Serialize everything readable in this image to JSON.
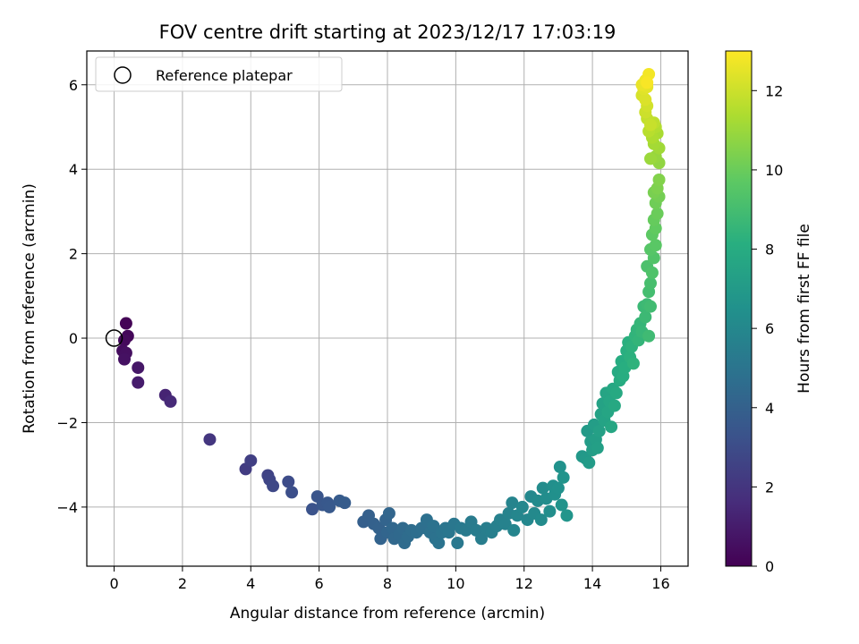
{
  "chart_data": {
    "type": "scatter",
    "title": "FOV centre drift starting at 2023/12/17 17:03:19",
    "xlabel": "Angular distance from reference (arcmin)",
    "ylabel": "Rotation from reference (arcmin)",
    "xlim": [
      -0.8,
      16.8
    ],
    "ylim": [
      -5.4,
      6.8
    ],
    "xticks": [
      "0",
      "2",
      "4",
      "6",
      "8",
      "10",
      "12",
      "14",
      "16"
    ],
    "yticks": [
      "−4",
      "−2",
      "0",
      "2",
      "4",
      "6"
    ],
    "grid": true,
    "legend": {
      "position": "top-left",
      "entries": [
        "Reference platepar"
      ]
    },
    "reference_point": {
      "x": 0,
      "y": 0
    },
    "colorbar": {
      "label": "Hours from first FF file",
      "colormap": "viridis",
      "range": [
        0,
        13
      ],
      "ticks": [
        "0",
        "2",
        "4",
        "6",
        "8",
        "10",
        "12"
      ]
    },
    "points": [
      {
        "x": 0.35,
        "y": 0.35,
        "h": 0.1
      },
      {
        "x": 0.4,
        "y": 0.05,
        "h": 0.2
      },
      {
        "x": 0.3,
        "y": -0.05,
        "h": 0.3
      },
      {
        "x": 0.25,
        "y": -0.3,
        "h": 0.4
      },
      {
        "x": 0.35,
        "y": -0.35,
        "h": 0.5
      },
      {
        "x": 0.3,
        "y": -0.5,
        "h": 0.6
      },
      {
        "x": 0.7,
        "y": -0.7,
        "h": 0.8
      },
      {
        "x": 0.7,
        "y": -1.05,
        "h": 1.0
      },
      {
        "x": 1.5,
        "y": -1.35,
        "h": 1.3
      },
      {
        "x": 1.65,
        "y": -1.5,
        "h": 1.5
      },
      {
        "x": 2.8,
        "y": -2.4,
        "h": 2.0
      },
      {
        "x": 3.85,
        "y": -3.1,
        "h": 2.3
      },
      {
        "x": 4.0,
        "y": -2.9,
        "h": 2.4
      },
      {
        "x": 4.5,
        "y": -3.25,
        "h": 2.6
      },
      {
        "x": 4.55,
        "y": -3.35,
        "h": 2.7
      },
      {
        "x": 4.65,
        "y": -3.5,
        "h": 2.8
      },
      {
        "x": 5.1,
        "y": -3.4,
        "h": 3.0
      },
      {
        "x": 5.2,
        "y": -3.65,
        "h": 3.1
      },
      {
        "x": 5.8,
        "y": -4.05,
        "h": 3.3
      },
      {
        "x": 5.95,
        "y": -3.75,
        "h": 3.4
      },
      {
        "x": 6.1,
        "y": -3.95,
        "h": 3.5
      },
      {
        "x": 6.25,
        "y": -3.9,
        "h": 3.55
      },
      {
        "x": 6.3,
        "y": -4.0,
        "h": 3.6
      },
      {
        "x": 6.6,
        "y": -3.85,
        "h": 3.7
      },
      {
        "x": 6.75,
        "y": -3.9,
        "h": 3.75
      },
      {
        "x": 7.3,
        "y": -4.35,
        "h": 3.9
      },
      {
        "x": 7.45,
        "y": -4.2,
        "h": 3.95
      },
      {
        "x": 7.6,
        "y": -4.4,
        "h": 4.0
      },
      {
        "x": 7.75,
        "y": -4.5,
        "h": 4.05
      },
      {
        "x": 7.8,
        "y": -4.75,
        "h": 4.1
      },
      {
        "x": 7.95,
        "y": -4.3,
        "h": 4.15
      },
      {
        "x": 8.0,
        "y": -4.6,
        "h": 4.2
      },
      {
        "x": 8.05,
        "y": -4.15,
        "h": 4.25
      },
      {
        "x": 8.15,
        "y": -4.5,
        "h": 4.3
      },
      {
        "x": 8.2,
        "y": -4.75,
        "h": 4.35
      },
      {
        "x": 8.35,
        "y": -4.65,
        "h": 4.4
      },
      {
        "x": 8.45,
        "y": -4.5,
        "h": 4.45
      },
      {
        "x": 8.5,
        "y": -4.85,
        "h": 4.5
      },
      {
        "x": 8.6,
        "y": -4.7,
        "h": 4.55
      },
      {
        "x": 8.7,
        "y": -4.55,
        "h": 4.6
      },
      {
        "x": 8.85,
        "y": -4.6,
        "h": 4.65
      },
      {
        "x": 9.0,
        "y": -4.5,
        "h": 4.7
      },
      {
        "x": 9.15,
        "y": -4.3,
        "h": 4.75
      },
      {
        "x": 9.25,
        "y": -4.6,
        "h": 4.8
      },
      {
        "x": 9.35,
        "y": -4.45,
        "h": 4.85
      },
      {
        "x": 9.4,
        "y": -4.75,
        "h": 4.9
      },
      {
        "x": 9.5,
        "y": -4.85,
        "h": 4.95
      },
      {
        "x": 9.6,
        "y": -4.6,
        "h": 5.0
      },
      {
        "x": 9.7,
        "y": -4.5,
        "h": 5.05
      },
      {
        "x": 9.8,
        "y": -4.6,
        "h": 5.1
      },
      {
        "x": 9.95,
        "y": -4.4,
        "h": 5.15
      },
      {
        "x": 10.05,
        "y": -4.85,
        "h": 5.2
      },
      {
        "x": 10.15,
        "y": -4.5,
        "h": 5.25
      },
      {
        "x": 10.3,
        "y": -4.55,
        "h": 5.3
      },
      {
        "x": 10.45,
        "y": -4.35,
        "h": 5.35
      },
      {
        "x": 10.6,
        "y": -4.55,
        "h": 5.4
      },
      {
        "x": 10.75,
        "y": -4.75,
        "h": 5.45
      },
      {
        "x": 10.9,
        "y": -4.5,
        "h": 5.5
      },
      {
        "x": 11.05,
        "y": -4.6,
        "h": 5.55
      },
      {
        "x": 11.2,
        "y": -4.45,
        "h": 5.6
      },
      {
        "x": 11.3,
        "y": -4.3,
        "h": 5.65
      },
      {
        "x": 11.45,
        "y": -4.4,
        "h": 5.7
      },
      {
        "x": 11.55,
        "y": -4.15,
        "h": 5.75
      },
      {
        "x": 11.65,
        "y": -3.9,
        "h": 5.8
      },
      {
        "x": 11.7,
        "y": -4.55,
        "h": 5.85
      },
      {
        "x": 11.8,
        "y": -4.2,
        "h": 5.9
      },
      {
        "x": 11.95,
        "y": -4.0,
        "h": 5.95
      },
      {
        "x": 12.1,
        "y": -4.3,
        "h": 6.0
      },
      {
        "x": 12.2,
        "y": -3.75,
        "h": 6.05
      },
      {
        "x": 12.3,
        "y": -4.15,
        "h": 6.1
      },
      {
        "x": 12.4,
        "y": -3.85,
        "h": 6.15
      },
      {
        "x": 12.5,
        "y": -4.3,
        "h": 6.2
      },
      {
        "x": 12.55,
        "y": -3.55,
        "h": 6.25
      },
      {
        "x": 12.65,
        "y": -3.8,
        "h": 6.3
      },
      {
        "x": 12.75,
        "y": -4.1,
        "h": 6.35
      },
      {
        "x": 12.85,
        "y": -3.5,
        "h": 6.4
      },
      {
        "x": 12.9,
        "y": -3.7,
        "h": 6.45
      },
      {
        "x": 13.0,
        "y": -3.55,
        "h": 6.5
      },
      {
        "x": 13.05,
        "y": -3.05,
        "h": 6.55
      },
      {
        "x": 13.1,
        "y": -3.95,
        "h": 6.6
      },
      {
        "x": 13.15,
        "y": -3.3,
        "h": 6.65
      },
      {
        "x": 13.25,
        "y": -4.2,
        "h": 6.7
      },
      {
        "x": 13.7,
        "y": -2.8,
        "h": 6.9
      },
      {
        "x": 13.8,
        "y": -2.85,
        "h": 6.95
      },
      {
        "x": 13.85,
        "y": -2.2,
        "h": 7.0
      },
      {
        "x": 13.9,
        "y": -2.95,
        "h": 7.05
      },
      {
        "x": 13.95,
        "y": -2.45,
        "h": 7.1
      },
      {
        "x": 14.0,
        "y": -2.65,
        "h": 7.15
      },
      {
        "x": 14.05,
        "y": -2.05,
        "h": 7.2
      },
      {
        "x": 14.1,
        "y": -2.4,
        "h": 7.25
      },
      {
        "x": 14.15,
        "y": -2.6,
        "h": 7.3
      },
      {
        "x": 14.2,
        "y": -2.2,
        "h": 7.35
      },
      {
        "x": 14.25,
        "y": -1.8,
        "h": 7.4
      },
      {
        "x": 14.3,
        "y": -1.55,
        "h": 7.45
      },
      {
        "x": 14.35,
        "y": -1.95,
        "h": 7.5
      },
      {
        "x": 14.4,
        "y": -1.3,
        "h": 7.55
      },
      {
        "x": 14.45,
        "y": -1.75,
        "h": 7.6
      },
      {
        "x": 14.5,
        "y": -1.5,
        "h": 7.65
      },
      {
        "x": 14.55,
        "y": -2.1,
        "h": 7.7
      },
      {
        "x": 14.6,
        "y": -1.2,
        "h": 7.75
      },
      {
        "x": 14.65,
        "y": -1.6,
        "h": 7.8
      },
      {
        "x": 14.7,
        "y": -1.3,
        "h": 7.85
      },
      {
        "x": 14.75,
        "y": -0.8,
        "h": 7.9
      },
      {
        "x": 14.8,
        "y": -1.0,
        "h": 7.95
      },
      {
        "x": 14.85,
        "y": -0.55,
        "h": 8.0
      },
      {
        "x": 14.9,
        "y": -0.9,
        "h": 8.05
      },
      {
        "x": 14.95,
        "y": -0.7,
        "h": 8.1
      },
      {
        "x": 15.0,
        "y": -0.3,
        "h": 8.15
      },
      {
        "x": 15.05,
        "y": -0.1,
        "h": 8.2
      },
      {
        "x": 15.1,
        "y": -0.45,
        "h": 8.25
      },
      {
        "x": 15.15,
        "y": -0.2,
        "h": 8.3
      },
      {
        "x": 15.2,
        "y": -0.6,
        "h": 8.35
      },
      {
        "x": 15.25,
        "y": 0.05,
        "h": 8.4
      },
      {
        "x": 15.3,
        "y": 0.2,
        "h": 8.45
      },
      {
        "x": 15.35,
        "y": -0.05,
        "h": 8.5
      },
      {
        "x": 15.4,
        "y": 0.35,
        "h": 8.55
      },
      {
        "x": 15.45,
        "y": 0.15,
        "h": 8.6
      },
      {
        "x": 15.5,
        "y": 0.75,
        "h": 8.7
      },
      {
        "x": 15.55,
        "y": 0.5,
        "h": 8.75
      },
      {
        "x": 15.6,
        "y": 0.8,
        "h": 8.8
      },
      {
        "x": 15.65,
        "y": 0.05,
        "h": 8.85
      },
      {
        "x": 15.7,
        "y": 0.75,
        "h": 8.9
      },
      {
        "x": 15.65,
        "y": 1.1,
        "h": 9.0
      },
      {
        "x": 15.7,
        "y": 1.3,
        "h": 9.1
      },
      {
        "x": 15.6,
        "y": 1.7,
        "h": 9.2
      },
      {
        "x": 15.75,
        "y": 1.55,
        "h": 9.3
      },
      {
        "x": 15.8,
        "y": 1.9,
        "h": 9.4
      },
      {
        "x": 15.7,
        "y": 2.1,
        "h": 9.5
      },
      {
        "x": 15.85,
        "y": 2.2,
        "h": 9.6
      },
      {
        "x": 15.75,
        "y": 2.45,
        "h": 9.7
      },
      {
        "x": 15.85,
        "y": 2.6,
        "h": 9.8
      },
      {
        "x": 15.8,
        "y": 2.8,
        "h": 9.9
      },
      {
        "x": 15.9,
        "y": 2.95,
        "h": 10.0
      },
      {
        "x": 15.85,
        "y": 3.2,
        "h": 10.1
      },
      {
        "x": 15.95,
        "y": 3.35,
        "h": 10.2
      },
      {
        "x": 15.8,
        "y": 3.45,
        "h": 10.3
      },
      {
        "x": 15.9,
        "y": 3.55,
        "h": 10.4
      },
      {
        "x": 15.95,
        "y": 3.75,
        "h": 10.5
      },
      {
        "x": 15.95,
        "y": 4.15,
        "h": 10.8
      },
      {
        "x": 15.85,
        "y": 4.3,
        "h": 10.9
      },
      {
        "x": 15.7,
        "y": 4.25,
        "h": 11.0
      },
      {
        "x": 15.95,
        "y": 4.5,
        "h": 11.1
      },
      {
        "x": 15.8,
        "y": 4.6,
        "h": 11.2
      },
      {
        "x": 15.9,
        "y": 4.85,
        "h": 11.3
      },
      {
        "x": 15.75,
        "y": 4.75,
        "h": 11.4
      },
      {
        "x": 15.85,
        "y": 5.0,
        "h": 11.5
      },
      {
        "x": 15.65,
        "y": 4.9,
        "h": 11.6
      },
      {
        "x": 15.8,
        "y": 5.1,
        "h": 11.7
      },
      {
        "x": 15.6,
        "y": 5.2,
        "h": 11.8
      },
      {
        "x": 15.7,
        "y": 5.05,
        "h": 11.9
      },
      {
        "x": 15.55,
        "y": 5.35,
        "h": 12.0
      },
      {
        "x": 15.6,
        "y": 5.5,
        "h": 12.1
      },
      {
        "x": 15.45,
        "y": 5.75,
        "h": 12.2
      },
      {
        "x": 15.55,
        "y": 5.65,
        "h": 12.3
      },
      {
        "x": 15.5,
        "y": 5.9,
        "h": 12.4
      },
      {
        "x": 15.6,
        "y": 5.95,
        "h": 12.5
      },
      {
        "x": 15.45,
        "y": 6.0,
        "h": 12.6
      },
      {
        "x": 15.55,
        "y": 6.1,
        "h": 12.7
      },
      {
        "x": 15.65,
        "y": 6.25,
        "h": 12.8
      },
      {
        "x": 15.6,
        "y": 6.05,
        "h": 12.9
      }
    ]
  }
}
